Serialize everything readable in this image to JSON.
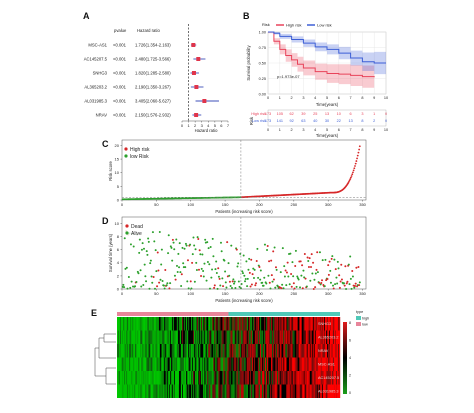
{
  "chart_data": [
    {
      "panel": "A",
      "type": "forest",
      "columns": [
        "pvalue",
        "Hazard ratio"
      ],
      "xlabel": "Hazard ratio",
      "xticks": [
        0,
        1,
        2,
        3,
        4,
        5,
        6,
        7
      ],
      "xlim": [
        0,
        7
      ],
      "reference_line": 1,
      "rows": [
        {
          "gene": "MSC-AS1",
          "pvalue": "<0.001",
          "hr_text": "1.726(1.354-2.163)",
          "hr": 1.726,
          "lo": 1.354,
          "hi": 2.163
        },
        {
          "gene": "AC145207.5",
          "pvalue": "<0.001",
          "hr_text": "2.480(1.725-3.566)",
          "hr": 2.48,
          "lo": 1.725,
          "hi": 3.566
        },
        {
          "gene": "SNHG3",
          "pvalue": "<0.001",
          "hr_text": "1.820(1.285-2.580)",
          "hr": 1.82,
          "lo": 1.285,
          "hi": 2.58
        },
        {
          "gene": "AL365203.2",
          "pvalue": "<0.001",
          "hr_text": "2.190(1.350-3.267)",
          "hr": 2.19,
          "lo": 1.35,
          "hi": 3.267
        },
        {
          "gene": "AL031985.3",
          "pvalue": "<0.001",
          "hr_text": "3.405(2.060-5.627)",
          "hr": 3.405,
          "lo": 2.06,
          "hi": 5.627
        },
        {
          "gene": "NRAV",
          "pvalue": "<0.001",
          "hr_text": "2.150(1.576-2.932)",
          "hr": 2.15,
          "lo": 1.576,
          "hi": 2.932
        }
      ]
    },
    {
      "panel": "B",
      "type": "line",
      "ylabel": "Survival probability",
      "xlabel": "Time(years)",
      "xlim": [
        0,
        10
      ],
      "ylim": [
        0,
        1
      ],
      "xticks": [
        0,
        1,
        2,
        3,
        4,
        5,
        6,
        7,
        8,
        9,
        10
      ],
      "yticks": [
        0,
        0.25,
        0.5,
        0.75,
        1.0
      ],
      "ytick_labels": [
        "0.00",
        "0.25",
        "0.50",
        "0.75",
        "1.00"
      ],
      "legend_title": "Risk",
      "pvalue_text": "p=1.973e-07",
      "series": [
        {
          "name": "High risk",
          "color": "#e8435a",
          "x": [
            0,
            0.5,
            1,
            1.5,
            2,
            2.5,
            3,
            4,
            5,
            6,
            7,
            8,
            9
          ],
          "y": [
            1.0,
            0.85,
            0.72,
            0.62,
            0.55,
            0.48,
            0.42,
            0.36,
            0.33,
            0.32,
            0.3,
            0.28,
            0.27
          ]
        },
        {
          "name": "Low risk",
          "color": "#3d5fd6",
          "x": [
            0,
            0.5,
            1,
            2,
            3,
            4,
            5,
            6,
            7,
            8,
            9,
            10
          ],
          "y": [
            1.0,
            0.98,
            0.93,
            0.88,
            0.82,
            0.76,
            0.72,
            0.66,
            0.58,
            0.52,
            0.5,
            0.5
          ]
        }
      ],
      "risk_table": {
        "label": "Risk",
        "rows": [
          {
            "name": "High risk",
            "color": "#e8435a",
            "counts": [
              "173",
              "105",
              "62",
              "39",
              "25",
              "13",
              "10",
              "6",
              "3",
              "1",
              "0"
            ]
          },
          {
            "name": "Low risk",
            "color": "#3d5fd6",
            "counts": [
              "173",
              "141",
              "92",
              "63",
              "40",
              "30",
              "22",
              "13",
              "8",
              "2",
              "0"
            ]
          }
        ]
      }
    },
    {
      "panel": "C",
      "type": "scatter",
      "xlabel": "Patients (increasing risk score)",
      "ylabel": "Risk score",
      "xticks": [
        0,
        50,
        100,
        150,
        200,
        250,
        300,
        350
      ],
      "yticks": [
        0,
        5,
        10,
        15,
        20
      ],
      "xlim": [
        0,
        355
      ],
      "ylim": [
        0,
        22
      ],
      "n": 346,
      "cutoff_index": 173,
      "cutoff_value": 1.0,
      "legend": [
        {
          "name": "High risk",
          "color": "#d62728"
        },
        {
          "name": "low Risk",
          "color": "#2ca02c"
        }
      ]
    },
    {
      "panel": "D",
      "type": "scatter",
      "xlabel": "Patients (increasing risk score)",
      "ylabel": "Survival time (years)",
      "xticks": [
        0,
        50,
        100,
        150,
        200,
        250,
        300,
        350
      ],
      "yticks": [
        0,
        2,
        4,
        6,
        8,
        10
      ],
      "xlim": [
        0,
        355
      ],
      "ylim": [
        0,
        11
      ],
      "legend": [
        {
          "name": "Dead",
          "color": "#d62728"
        },
        {
          "name": "Alive",
          "color": "#2ca02c"
        }
      ]
    },
    {
      "panel": "E",
      "type": "heatmap",
      "rows": [
        "SNHG3",
        "AL365203.2",
        "NRAV",
        "MSC-AS1",
        "AC145207.5",
        "AL031985.3"
      ],
      "annotation_title": "type",
      "annotation": [
        {
          "name": "high",
          "color": "#4fc9b8"
        },
        {
          "name": "low",
          "color": "#e8859a"
        }
      ],
      "colorbar_ticks": [
        "8",
        "6",
        "4",
        "2",
        "0"
      ],
      "colorbar_low": "#1b9e1b",
      "colorbar_mid": "#000000",
      "colorbar_high": "#e01b1b"
    }
  ]
}
